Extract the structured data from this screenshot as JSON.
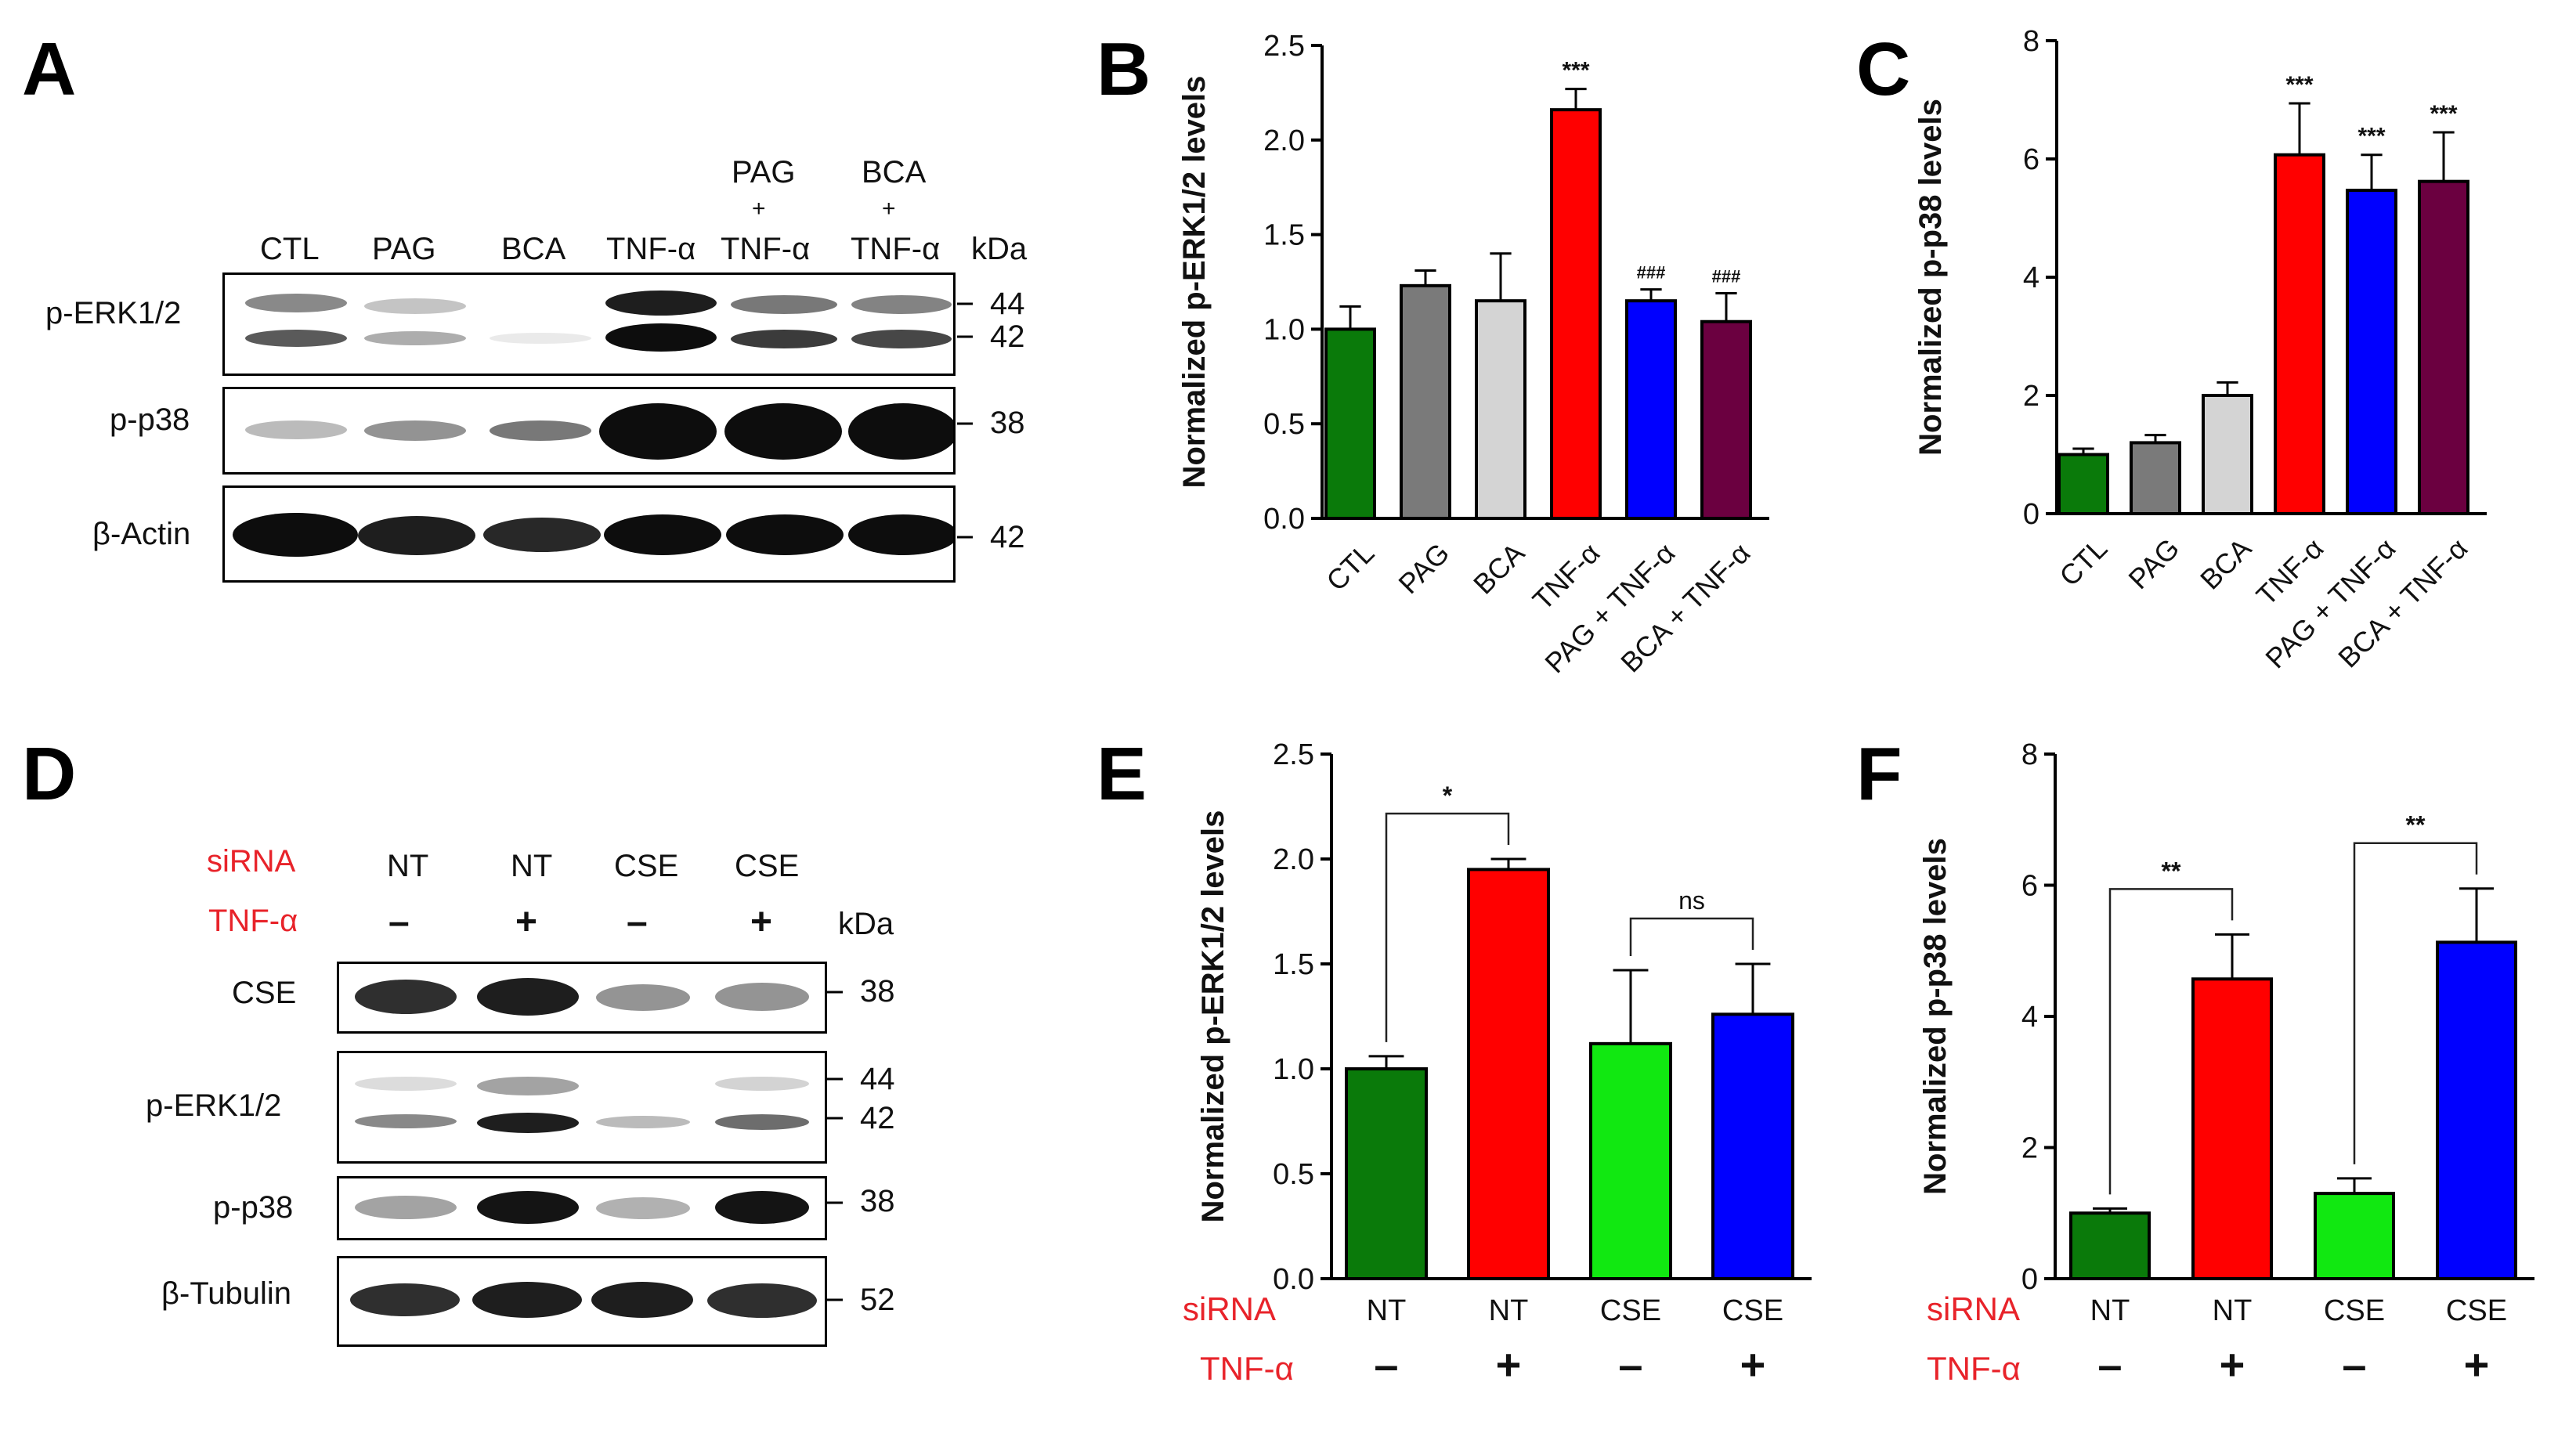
{
  "panels": {
    "A": "A",
    "B": "B",
    "C": "C",
    "D": "D",
    "E": "E",
    "F": "F"
  },
  "colors": {
    "ctl": "#0a7a0a",
    "pag": "#7a7a7a",
    "bca": "#d4d4d4",
    "tnf": "#ff0000",
    "pag_tnf": "#0000ff",
    "bca_tnf": "#6b0040",
    "nt_ctl": "#0a7a0a",
    "nt_tnf": "#ff0000",
    "cse_ctl": "#11e811",
    "cse_tnf": "#0000ff",
    "red_label": "#e8232a"
  },
  "blotA": {
    "lanes": [
      "CTL",
      "PAG",
      "BCA",
      "TNF-α"
    ],
    "combo_lanes": [
      {
        "top": "PAG",
        "plus": "+",
        "bottom": "TNF-α"
      },
      {
        "top": "BCA",
        "plus": "+",
        "bottom": "TNF-α"
      }
    ],
    "unit": "kDa",
    "rows": [
      {
        "label": "p-ERK1/2",
        "markers": [
          "44",
          "42"
        ]
      },
      {
        "label": "p-p38",
        "markers": [
          "38"
        ]
      },
      {
        "label": "β-Actin",
        "markers": [
          "42"
        ]
      }
    ]
  },
  "blotD": {
    "siRNA_label": "siRNA",
    "tnf_label": "TNF-α",
    "unit": "kDa",
    "siRNA": [
      "NT",
      "NT",
      "CSE",
      "CSE"
    ],
    "tnf": [
      "–",
      "+",
      "–",
      "+"
    ],
    "rows": [
      {
        "label": "CSE",
        "markers": [
          "38"
        ]
      },
      {
        "label": "p-ERK1/2",
        "markers": [
          "44",
          "42"
        ]
      },
      {
        "label": "p-p38",
        "markers": [
          "38"
        ]
      },
      {
        "label": "β-Tubulin",
        "markers": [
          "52"
        ]
      }
    ]
  },
  "chart_data": [
    {
      "panel": "B",
      "type": "bar",
      "ylabel": "Normalized p-ERK1/2 levels",
      "ylim": [
        0,
        2.5
      ],
      "yticks": [
        "0.0",
        "0.5",
        "1.0",
        "1.5",
        "2.0",
        "2.5"
      ],
      "categories": [
        "CTL",
        "PAG",
        "BCA",
        "TNF-α",
        "PAG + TNF-α",
        "BCA + TNF-α"
      ],
      "values": [
        1.0,
        1.23,
        1.15,
        2.16,
        1.15,
        1.04
      ],
      "errors": [
        0.12,
        0.08,
        0.25,
        0.11,
        0.06,
        0.15
      ],
      "annotations": [
        "",
        "",
        "",
        "***",
        "###",
        "###"
      ]
    },
    {
      "panel": "C",
      "type": "bar",
      "ylabel": "Normalized p-p38 levels",
      "ylim": [
        0,
        8
      ],
      "yticks": [
        "0",
        "2",
        "4",
        "6",
        "8"
      ],
      "categories": [
        "CTL",
        "PAG",
        "BCA",
        "TNF-α",
        "PAG + TNF-α",
        "BCA + TNF-α"
      ],
      "values": [
        1.0,
        1.2,
        2.0,
        6.07,
        5.47,
        5.62
      ],
      "errors": [
        0.1,
        0.13,
        0.22,
        0.87,
        0.6,
        0.83
      ],
      "annotations": [
        "",
        "",
        "",
        "***",
        "***",
        "***"
      ]
    },
    {
      "panel": "E",
      "type": "bar",
      "ylabel": "Normalized p-ERK1/2 levels",
      "ylim": [
        0,
        2.5
      ],
      "yticks": [
        "0.0",
        "0.5",
        "1.0",
        "1.5",
        "2.0",
        "2.5"
      ],
      "siRNA_label": "siRNA",
      "tnf_label": "TNF-α",
      "categories": [
        "NT",
        "NT",
        "CSE",
        "CSE"
      ],
      "tnf": [
        "–",
        "+",
        "–",
        "+"
      ],
      "values": [
        1.0,
        1.95,
        1.12,
        1.26
      ],
      "errors": [
        0.06,
        0.05,
        0.35,
        0.24
      ],
      "comparisons": [
        {
          "from": 0,
          "to": 1,
          "label": "*"
        },
        {
          "from": 2,
          "to": 3,
          "label": "ns"
        }
      ]
    },
    {
      "panel": "F",
      "type": "bar",
      "ylabel": "Normalized p-p38 levels",
      "ylim": [
        0,
        8
      ],
      "yticks": [
        "0",
        "2",
        "4",
        "6",
        "8"
      ],
      "siRNA_label": "siRNA",
      "tnf_label": "TNF-α",
      "categories": [
        "NT",
        "NT",
        "CSE",
        "CSE"
      ],
      "tnf": [
        "–",
        "+",
        "–",
        "+"
      ],
      "values": [
        1.0,
        4.57,
        1.3,
        5.13
      ],
      "errors": [
        0.07,
        0.68,
        0.23,
        0.82
      ],
      "comparisons": [
        {
          "from": 0,
          "to": 1,
          "label": "**"
        },
        {
          "from": 2,
          "to": 3,
          "label": "**"
        }
      ]
    }
  ]
}
